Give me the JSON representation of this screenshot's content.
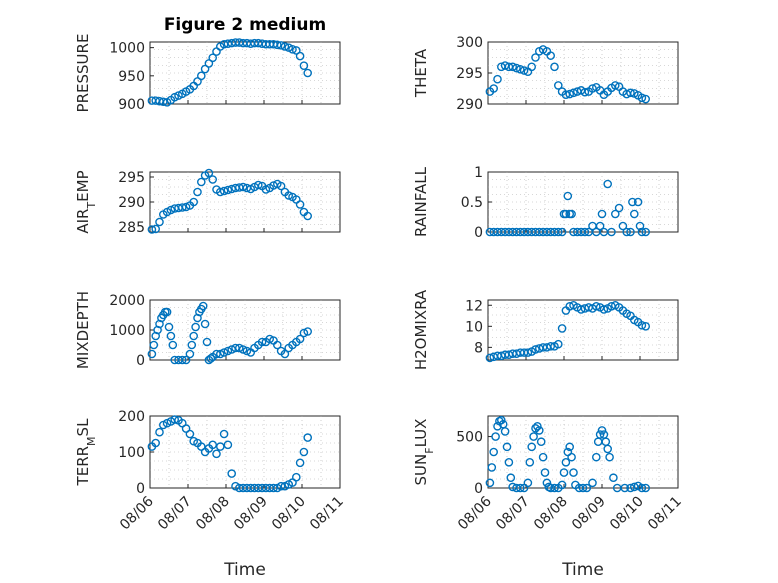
{
  "figure": {
    "title": "Figure 2 medium",
    "marker_color": "#0072BD",
    "date_ticks": [
      "08/06",
      "08/07",
      "08/08",
      "08/09",
      "08/10",
      "08/11"
    ],
    "xlabel": "Time"
  },
  "chart_data": [
    {
      "type": "scatter",
      "ylabel": "PRESSURE",
      "ylim": [
        900,
        1010
      ],
      "yticks": [
        900,
        950,
        1000
      ],
      "grid": true,
      "xlim": [
        0,
        5
      ],
      "x": [
        0.05,
        0.15,
        0.25,
        0.35,
        0.45,
        0.55,
        0.65,
        0.75,
        0.85,
        0.95,
        1.05,
        1.15,
        1.25,
        1.35,
        1.45,
        1.55,
        1.65,
        1.75,
        1.85,
        1.95,
        2.05,
        2.15,
        2.25,
        2.35,
        2.45,
        2.55,
        2.65,
        2.75,
        2.85,
        2.95,
        3.05,
        3.15,
        3.25,
        3.35,
        3.45,
        3.55,
        3.65,
        3.75,
        3.85,
        3.95,
        4.05,
        4.15
      ],
      "y": [
        906,
        906,
        905,
        904,
        903,
        907,
        912,
        915,
        918,
        922,
        926,
        932,
        940,
        950,
        962,
        972,
        982,
        993,
        1002,
        1006,
        1007,
        1008,
        1009,
        1009,
        1008,
        1008,
        1007,
        1008,
        1008,
        1007,
        1006,
        1006,
        1006,
        1005,
        1004,
        1002,
        1000,
        997,
        995,
        985,
        968,
        955
      ]
    },
    {
      "type": "scatter",
      "ylabel": "THETA",
      "ylim": [
        290,
        300
      ],
      "yticks": [
        290,
        295,
        300
      ],
      "grid": true,
      "xlim": [
        0,
        5
      ],
      "x": [
        0.05,
        0.15,
        0.25,
        0.35,
        0.45,
        0.55,
        0.65,
        0.75,
        0.85,
        0.95,
        1.05,
        1.15,
        1.25,
        1.35,
        1.45,
        1.55,
        1.65,
        1.75,
        1.85,
        1.95,
        2.05,
        2.15,
        2.25,
        2.35,
        2.45,
        2.55,
        2.65,
        2.75,
        2.85,
        2.95,
        3.05,
        3.15,
        3.25,
        3.35,
        3.45,
        3.55,
        3.65,
        3.75,
        3.85,
        3.95,
        4.05,
        4.15
      ],
      "y": [
        292,
        292.5,
        294,
        296,
        296.2,
        296,
        296,
        295.8,
        295.6,
        295.4,
        295.2,
        296,
        297.5,
        298.5,
        298.8,
        298.5,
        297.8,
        296,
        293,
        292,
        291.5,
        291.6,
        291.8,
        292,
        292.2,
        291.9,
        292,
        292.5,
        292.7,
        292.2,
        291.5,
        292,
        292.6,
        293,
        292.8,
        292,
        291.6,
        291.8,
        291.7,
        291.4,
        291,
        290.8
      ]
    },
    {
      "type": "scatter",
      "ylabel": "AIR_TEMP",
      "ylim": [
        284,
        296
      ],
      "yticks": [
        285,
        290,
        295
      ],
      "grid": true,
      "xlim": [
        0,
        5
      ],
      "x": [
        0.05,
        0.15,
        0.25,
        0.35,
        0.45,
        0.55,
        0.65,
        0.75,
        0.85,
        0.95,
        1.05,
        1.15,
        1.25,
        1.35,
        1.45,
        1.55,
        1.65,
        1.75,
        1.85,
        1.95,
        2.05,
        2.15,
        2.25,
        2.35,
        2.45,
        2.55,
        2.65,
        2.75,
        2.85,
        2.95,
        3.05,
        3.15,
        3.25,
        3.35,
        3.45,
        3.55,
        3.65,
        3.75,
        3.85,
        3.95,
        4.05,
        4.15
      ],
      "y": [
        284.5,
        284.6,
        286,
        287.5,
        288,
        288.4,
        288.7,
        288.8,
        288.9,
        289,
        289.3,
        290,
        292,
        294,
        295.3,
        295.8,
        294.5,
        292.5,
        292,
        292.2,
        292.4,
        292.6,
        292.8,
        292.9,
        293,
        292.8,
        292.6,
        293,
        293.4,
        293.2,
        292.5,
        292.8,
        293.3,
        293.6,
        293.2,
        292,
        291.3,
        291,
        290.5,
        289.5,
        288,
        287.2
      ]
    },
    {
      "type": "scatter",
      "ylabel": "RAINFALL",
      "ylim": [
        0,
        1
      ],
      "yticks": [
        0,
        0.5,
        1
      ],
      "grid": true,
      "xlim": [
        0,
        5
      ],
      "x": [
        0.05,
        0.15,
        0.25,
        0.35,
        0.45,
        0.55,
        0.65,
        0.75,
        0.85,
        0.95,
        1.05,
        1.15,
        1.25,
        1.35,
        1.45,
        1.55,
        1.65,
        1.75,
        1.85,
        1.95,
        2.0,
        2.05,
        2.1,
        2.15,
        2.2,
        2.25,
        2.35,
        2.45,
        2.55,
        2.65,
        2.75,
        2.85,
        2.95,
        3.0,
        3.05,
        3.15,
        3.25,
        3.35,
        3.45,
        3.55,
        3.65,
        3.75,
        3.8,
        3.85,
        3.95,
        4.0,
        4.05,
        4.15
      ],
      "y": [
        0,
        0,
        0,
        0,
        0,
        0,
        0,
        0,
        0,
        0,
        0,
        0,
        0,
        0,
        0,
        0,
        0,
        0,
        0,
        0,
        0.3,
        0.3,
        0.6,
        0.3,
        0.3,
        0,
        0,
        0,
        0,
        0,
        0.1,
        0,
        0.1,
        0.3,
        0,
        0.8,
        0,
        0.3,
        0.4,
        0.1,
        0,
        0,
        0.5,
        0.3,
        0.5,
        0.1,
        0,
        0
      ]
    },
    {
      "type": "scatter",
      "ylabel": "MIXDEPTH",
      "ylim": [
        0,
        2000
      ],
      "yticks": [
        0,
        1000,
        2000
      ],
      "grid": true,
      "xlim": [
        0,
        5
      ],
      "x": [
        0.05,
        0.1,
        0.15,
        0.2,
        0.25,
        0.3,
        0.35,
        0.4,
        0.45,
        0.5,
        0.55,
        0.6,
        0.65,
        0.75,
        0.85,
        0.95,
        1.05,
        1.1,
        1.15,
        1.2,
        1.25,
        1.3,
        1.35,
        1.4,
        1.45,
        1.5,
        1.55,
        1.6,
        1.65,
        1.75,
        1.85,
        1.95,
        2.05,
        2.15,
        2.25,
        2.35,
        2.45,
        2.55,
        2.65,
        2.75,
        2.85,
        2.95,
        3.05,
        3.15,
        3.25,
        3.35,
        3.45,
        3.55,
        3.65,
        3.75,
        3.85,
        3.95,
        4.05,
        4.15
      ],
      "y": [
        200,
        500,
        800,
        1000,
        1200,
        1400,
        1500,
        1600,
        1600,
        1100,
        800,
        500,
        0,
        0,
        0,
        0,
        200,
        500,
        800,
        1100,
        1400,
        1600,
        1700,
        1800,
        1200,
        600,
        0,
        50,
        100,
        200,
        200,
        250,
        300,
        350,
        400,
        400,
        350,
        300,
        250,
        400,
        500,
        600,
        600,
        700,
        650,
        500,
        300,
        200,
        400,
        500,
        600,
        700,
        900,
        950
      ]
    },
    {
      "type": "scatter",
      "ylabel": "H2OMIXRA",
      "ylim": [
        6.8,
        12.5
      ],
      "yticks": [
        8,
        10,
        12
      ],
      "grid": true,
      "xlim": [
        0,
        5
      ],
      "x": [
        0.05,
        0.15,
        0.25,
        0.35,
        0.45,
        0.55,
        0.65,
        0.75,
        0.85,
        0.95,
        1.05,
        1.15,
        1.25,
        1.35,
        1.45,
        1.55,
        1.65,
        1.75,
        1.85,
        1.95,
        2.05,
        2.15,
        2.25,
        2.35,
        2.45,
        2.55,
        2.65,
        2.75,
        2.85,
        2.95,
        3.05,
        3.15,
        3.25,
        3.35,
        3.45,
        3.55,
        3.65,
        3.75,
        3.85,
        3.95,
        4.05,
        4.15
      ],
      "y": [
        7,
        7.1,
        7.2,
        7.2,
        7.3,
        7.3,
        7.4,
        7.4,
        7.5,
        7.5,
        7.5,
        7.6,
        7.8,
        7.9,
        8.0,
        8.0,
        8.1,
        8.1,
        8.3,
        9.8,
        11.5,
        11.9,
        12.0,
        11.8,
        11.6,
        11.7,
        11.8,
        11.7,
        11.9,
        11.8,
        11.6,
        11.7,
        11.9,
        12.0,
        11.8,
        11.5,
        11.2,
        11.0,
        10.6,
        10.4,
        10.1,
        10.0
      ]
    },
    {
      "type": "scatter",
      "ylabel": "TERR_MSL",
      "ylim": [
        0,
        200
      ],
      "yticks": [
        0,
        100,
        200
      ],
      "grid": true,
      "xlim": [
        0,
        5
      ],
      "x": [
        0.05,
        0.15,
        0.25,
        0.35,
        0.45,
        0.55,
        0.65,
        0.75,
        0.85,
        0.95,
        1.05,
        1.15,
        1.25,
        1.35,
        1.45,
        1.55,
        1.65,
        1.75,
        1.85,
        1.95,
        2.05,
        2.15,
        2.25,
        2.35,
        2.45,
        2.55,
        2.65,
        2.75,
        2.85,
        2.95,
        3.05,
        3.15,
        3.25,
        3.35,
        3.45,
        3.55,
        3.65,
        3.75,
        3.85,
        3.95,
        4.05,
        4.15
      ],
      "y": [
        115,
        125,
        155,
        175,
        180,
        185,
        190,
        188,
        180,
        165,
        150,
        130,
        125,
        115,
        100,
        110,
        120,
        95,
        115,
        150,
        120,
        40,
        5,
        0,
        0,
        0,
        0,
        0,
        0,
        0,
        0,
        0,
        0,
        0,
        5,
        5,
        10,
        15,
        30,
        70,
        100,
        140
      ]
    },
    {
      "type": "scatter",
      "ylabel": "SUN_FLUX",
      "ylim": [
        0,
        700
      ],
      "yticks": [
        0,
        500
      ],
      "grid": true,
      "xlim": [
        0,
        5
      ],
      "x": [
        0.05,
        0.1,
        0.15,
        0.2,
        0.25,
        0.3,
        0.35,
        0.4,
        0.45,
        0.5,
        0.55,
        0.6,
        0.65,
        0.75,
        0.85,
        0.95,
        1.05,
        1.1,
        1.15,
        1.2,
        1.25,
        1.3,
        1.35,
        1.4,
        1.45,
        1.5,
        1.55,
        1.6,
        1.65,
        1.75,
        1.85,
        1.95,
        2.0,
        2.05,
        2.1,
        2.15,
        2.2,
        2.25,
        2.3,
        2.4,
        2.5,
        2.6,
        2.75,
        2.85,
        2.9,
        2.95,
        3.0,
        3.05,
        3.1,
        3.15,
        3.2,
        3.3,
        3.4,
        3.6,
        3.75,
        3.85,
        3.95,
        4.05,
        4.15
      ],
      "y": [
        50,
        200,
        350,
        500,
        600,
        650,
        660,
        620,
        550,
        400,
        250,
        100,
        10,
        0,
        0,
        0,
        50,
        250,
        400,
        500,
        580,
        600,
        560,
        450,
        300,
        150,
        50,
        10,
        0,
        0,
        0,
        30,
        150,
        250,
        350,
        400,
        300,
        150,
        30,
        0,
        0,
        0,
        50,
        300,
        450,
        520,
        560,
        520,
        450,
        380,
        300,
        100,
        0,
        0,
        0,
        10,
        20,
        0,
        0
      ]
    }
  ]
}
